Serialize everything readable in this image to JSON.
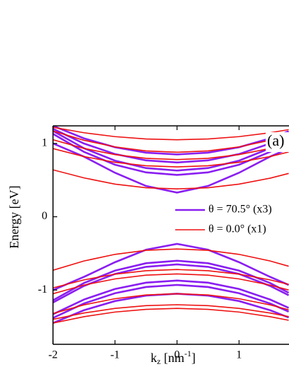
{
  "chart_data": {
    "type": "line",
    "panel_label": "(a)",
    "y_label": "Energy [eV]",
    "x_label": {
      "base": "k",
      "sub": "z",
      "unit_open": " [nm",
      "sup": "-1",
      "unit_close": "]"
    },
    "x": [
      -2,
      -1.5,
      -1,
      -0.5,
      0,
      0.5,
      1,
      1.5,
      1.8
    ],
    "xlim": [
      -2,
      1.8
    ],
    "ylim": [
      -1.74,
      1.24
    ],
    "xticks": [
      -2,
      -1,
      0,
      1
    ],
    "yticks": [
      -1,
      0,
      1
    ],
    "legend": "right",
    "series": [
      {
        "name": "θ = 70.5° (x3)",
        "color": "#8a1ef0",
        "width": 2.6,
        "curves": [
          [
            1.0,
            0.82,
            0.6,
            0.42,
            0.33,
            0.42,
            0.6,
            0.82,
            0.93
          ],
          [
            1.13,
            0.885,
            0.71,
            0.605,
            0.57,
            0.605,
            0.71,
            0.885,
            1.024
          ],
          [
            1.17,
            0.934,
            0.765,
            0.664,
            0.63,
            0.664,
            0.765,
            0.934,
            1.067
          ],
          [
            1.2,
            0.999,
            0.855,
            0.769,
            0.74,
            0.769,
            0.855,
            0.999,
            1.113
          ],
          [
            1.24,
            1.069,
            0.948,
            0.874,
            0.85,
            0.874,
            0.948,
            1.069,
            1.166
          ],
          [
            -1.0,
            -0.82,
            -0.62,
            -0.45,
            -0.37,
            -0.45,
            -0.62,
            -0.82,
            -0.93
          ],
          [
            -1.14,
            -0.904,
            -0.735,
            -0.634,
            -0.6,
            -0.634,
            -0.735,
            -0.904,
            -1.037
          ],
          [
            -1.17,
            -0.943,
            -0.78,
            -0.683,
            -0.65,
            -0.683,
            -0.78,
            -0.943,
            -1.071
          ],
          [
            -1.33,
            -1.129,
            -0.985,
            -0.899,
            -0.87,
            -0.899,
            -0.985,
            -1.129,
            -1.243
          ],
          [
            -1.38,
            -1.183,
            -1.043,
            -0.958,
            -0.93,
            -0.958,
            -1.043,
            -1.183,
            -1.295
          ],
          [
            -1.45,
            -1.275,
            -1.15,
            -1.075,
            -1.05,
            -1.075,
            -1.15,
            -1.275,
            -1.374
          ]
        ]
      },
      {
        "name": "θ = 0.0° (x1)",
        "color": "#ee1111",
        "width": 1.6,
        "curves": [
          [
            0.64,
            0.53,
            0.445,
            0.396,
            0.38,
            0.396,
            0.445,
            0.526,
            0.591
          ],
          [
            0.93,
            0.821,
            0.743,
            0.696,
            0.68,
            0.696,
            0.743,
            0.821,
            0.883
          ],
          [
            1.05,
            0.932,
            0.848,
            0.797,
            0.78,
            0.797,
            0.848,
            0.932,
            0.999
          ],
          [
            1.17,
            1.043,
            0.953,
            0.898,
            0.88,
            0.898,
            0.953,
            1.043,
            1.115
          ],
          [
            1.22,
            1.146,
            1.093,
            1.061,
            1.05,
            1.061,
            1.093,
            1.146,
            1.188
          ],
          [
            -0.73,
            -0.603,
            -0.513,
            -0.458,
            -0.44,
            -0.458,
            -0.513,
            -0.603,
            -0.675
          ],
          [
            -0.97,
            -0.861,
            -0.783,
            -0.736,
            -0.72,
            -0.736,
            -0.783,
            -0.861,
            -0.923
          ],
          [
            -1.05,
            -0.932,
            -0.848,
            -0.797,
            -0.78,
            -0.797,
            -0.848,
            -0.932,
            -0.999
          ],
          [
            -1.32,
            -1.202,
            -1.118,
            -1.067,
            -1.05,
            -1.067,
            -1.118,
            -1.202,
            -1.269
          ],
          [
            -1.4,
            -1.313,
            -1.25,
            -1.213,
            -1.2,
            -1.213,
            -1.25,
            -1.313,
            -1.362
          ],
          [
            -1.45,
            -1.363,
            -1.3,
            -1.263,
            -1.25,
            -1.263,
            -1.3,
            -1.363,
            -1.412
          ]
        ]
      }
    ]
  }
}
